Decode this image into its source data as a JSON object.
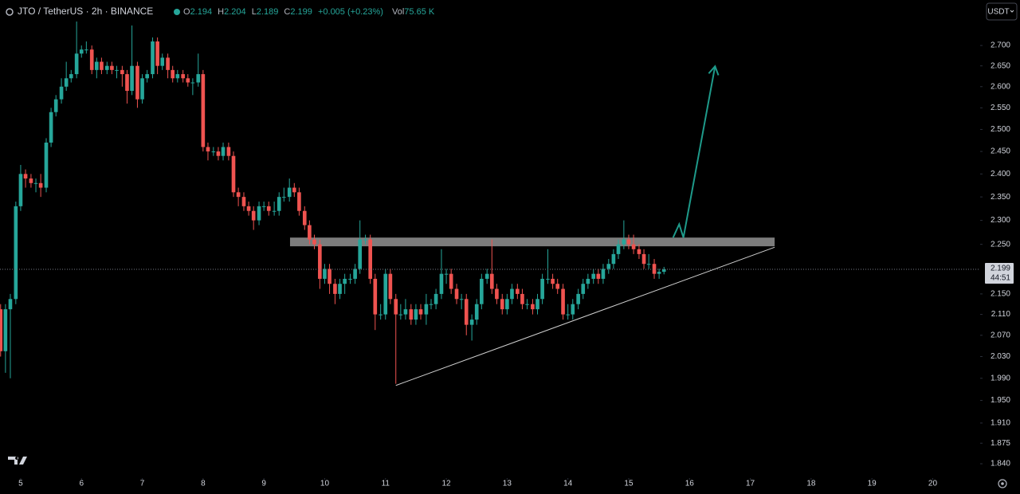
{
  "chart_data": {
    "type": "candlestick",
    "symbol": "JTO / TetherUS · 2h · BINANCE",
    "ohlc_labels": [
      "O",
      "H",
      "L",
      "C"
    ],
    "change": "+0.005 (+0.23%)",
    "volume_label": "Vol",
    "volume": "75.65 K",
    "currency": "USDT",
    "countdown": "44:51",
    "up_color": "#26a69a",
    "down_color": "#ef5350",
    "log_scale": true,
    "grid": false,
    "xlim": [
      4.66,
      20.78
    ],
    "xticks": [
      5,
      6,
      7,
      8,
      9,
      10,
      11,
      12,
      13,
      14,
      15,
      16,
      17,
      18,
      19,
      20
    ],
    "ylim": [
      1.816,
      2.815
    ],
    "yticks": [
      {
        "value": 2.7,
        "label": "2.700"
      },
      {
        "value": 2.65,
        "label": "2.650"
      },
      {
        "value": 2.6,
        "label": "2.600"
      },
      {
        "value": 2.55,
        "label": "2.550"
      },
      {
        "value": 2.5,
        "label": "2.500"
      },
      {
        "value": 2.45,
        "label": "2.450"
      },
      {
        "value": 2.4,
        "label": "2.400"
      },
      {
        "value": 2.35,
        "label": "2.350"
      },
      {
        "value": 2.3,
        "label": "2.300"
      },
      {
        "value": 2.25,
        "label": "2.250"
      },
      {
        "value": 2.15,
        "label": "2.150"
      },
      {
        "value": 2.11,
        "label": "2.110"
      },
      {
        "value": 2.07,
        "label": "2.070"
      },
      {
        "value": 2.03,
        "label": "2.030"
      },
      {
        "value": 1.99,
        "label": "1.990"
      },
      {
        "value": 1.95,
        "label": "1.950"
      },
      {
        "value": 1.91,
        "label": "1.910"
      },
      1.875,
      {
        "value": 1.84,
        "label": "1.840"
      }
    ],
    "x": [
      4.67,
      4.75,
      4.83,
      4.92,
      5,
      5.08,
      5.17,
      5.25,
      5.33,
      5.42,
      5.5,
      5.58,
      5.67,
      5.75,
      5.83,
      5.92,
      6,
      6.08,
      6.17,
      6.25,
      6.33,
      6.42,
      6.5,
      6.58,
      6.67,
      6.75,
      6.83,
      6.92,
      7,
      7.08,
      7.17,
      7.25,
      7.33,
      7.42,
      7.5,
      7.58,
      7.67,
      7.75,
      7.83,
      7.92,
      8,
      8.08,
      8.17,
      8.25,
      8.33,
      8.42,
      8.5,
      8.58,
      8.67,
      8.75,
      8.83,
      8.92,
      9,
      9.08,
      9.17,
      9.25,
      9.33,
      9.42,
      9.5,
      9.58,
      9.67,
      9.75,
      9.83,
      9.92,
      10,
      10.08,
      10.17,
      10.25,
      10.33,
      10.42,
      10.5,
      10.58,
      10.67,
      10.75,
      10.83,
      10.92,
      11,
      11.08,
      11.17,
      11.25,
      11.33,
      11.42,
      11.5,
      11.58,
      11.67,
      11.75,
      11.83,
      11.92,
      12,
      12.08,
      12.17,
      12.25,
      12.33,
      12.42,
      12.5,
      12.58,
      12.67,
      12.75,
      12.83,
      12.92,
      13,
      13.08,
      13.17,
      13.25,
      13.33,
      13.42,
      13.5,
      13.58,
      13.67,
      13.75,
      13.83,
      13.92,
      14,
      14.08,
      14.17,
      14.25,
      14.33,
      14.42,
      14.5,
      14.58,
      14.67,
      14.75,
      14.83,
      14.92,
      15,
      15.08,
      15.17,
      15.25,
      15.33,
      15.42,
      15.5,
      15.58
    ],
    "open": [
      2.12,
      2.04,
      2.12,
      2.14,
      2.33,
      2.4,
      2.39,
      2.38,
      2.38,
      2.37,
      2.47,
      2.54,
      2.57,
      2.6,
      2.62,
      2.63,
      2.68,
      2.69,
      2.69,
      2.64,
      2.66,
      2.64,
      2.65,
      2.64,
      2.64,
      2.63,
      2.59,
      2.65,
      2.57,
      2.62,
      2.63,
      2.71,
      2.65,
      2.67,
      2.64,
      2.62,
      2.63,
      2.62,
      2.61,
      2.61,
      2.63,
      2.46,
      2.45,
      2.45,
      2.44,
      2.46,
      2.44,
      2.36,
      2.35,
      2.33,
      2.32,
      2.3,
      2.33,
      2.33,
      2.32,
      2.32,
      2.35,
      2.35,
      2.37,
      2.36,
      2.32,
      2.29,
      2.26,
      2.25,
      2.18,
      2.2,
      2.17,
      2.15,
      2.17,
      2.18,
      2.18,
      2.2,
      2.26,
      2.26,
      2.18,
      2.11,
      2.11,
      2.19,
      2.14,
      2.11,
      2.11,
      2.12,
      2.1,
      2.12,
      2.11,
      2.13,
      2.13,
      2.15,
      2.19,
      2.19,
      2.16,
      2.14,
      2.14,
      2.09,
      2.1,
      2.13,
      2.18,
      2.19,
      2.16,
      2.14,
      2.12,
      2.14,
      2.16,
      2.15,
      2.13,
      2.13,
      2.12,
      2.14,
      2.18,
      2.18,
      2.17,
      2.16,
      2.11,
      2.11,
      2.13,
      2.15,
      2.17,
      2.18,
      2.19,
      2.18,
      2.2,
      2.21,
      2.23,
      2.25,
      2.26,
      2.25,
      2.24,
      2.23,
      2.21,
      2.21,
      2.19,
      2.194
    ],
    "high": [
      2.13,
      2.13,
      2.15,
      2.34,
      2.42,
      2.41,
      2.4,
      2.39,
      2.4,
      2.48,
      2.55,
      2.58,
      2.62,
      2.66,
      2.64,
      2.76,
      2.7,
      2.71,
      2.7,
      2.67,
      2.67,
      2.66,
      2.66,
      2.65,
      2.65,
      2.64,
      2.75,
      2.66,
      2.63,
      2.64,
      2.72,
      2.72,
      2.68,
      2.68,
      2.65,
      2.64,
      2.64,
      2.63,
      2.62,
      2.68,
      2.64,
      2.47,
      2.46,
      2.46,
      2.47,
      2.47,
      2.45,
      2.37,
      2.36,
      2.34,
      2.33,
      2.34,
      2.34,
      2.34,
      2.34,
      2.36,
      2.37,
      2.39,
      2.38,
      2.37,
      2.33,
      2.3,
      2.27,
      2.26,
      2.21,
      2.21,
      2.18,
      2.18,
      2.19,
      2.19,
      2.21,
      2.3,
      2.27,
      2.27,
      2.19,
      2.13,
      2.2,
      2.2,
      2.15,
      2.13,
      2.14,
      2.13,
      2.13,
      2.13,
      2.15,
      2.14,
      2.16,
      2.24,
      2.2,
      2.2,
      2.17,
      2.15,
      2.15,
      2.11,
      2.14,
      2.19,
      2.2,
      2.26,
      2.17,
      2.15,
      2.15,
      2.17,
      2.17,
      2.16,
      2.14,
      2.14,
      2.15,
      2.19,
      2.24,
      2.19,
      2.18,
      2.17,
      2.13,
      2.14,
      2.16,
      2.18,
      2.19,
      2.2,
      2.2,
      2.21,
      2.22,
      2.24,
      2.26,
      2.3,
      2.27,
      2.27,
      2.25,
      2.24,
      2.23,
      2.22,
      2.2,
      2.204
    ],
    "low": [
      2.03,
      2.0,
      1.99,
      2.13,
      2.32,
      2.37,
      2.37,
      2.36,
      2.35,
      2.36,
      2.46,
      2.53,
      2.56,
      2.59,
      2.61,
      2.62,
      2.67,
      2.68,
      2.63,
      2.62,
      2.63,
      2.63,
      2.63,
      2.62,
      2.6,
      2.56,
      2.58,
      2.55,
      2.56,
      2.61,
      2.62,
      2.63,
      2.64,
      2.62,
      2.61,
      2.61,
      2.61,
      2.6,
      2.58,
      2.6,
      2.45,
      2.43,
      2.44,
      2.43,
      2.43,
      2.43,
      2.35,
      2.33,
      2.32,
      2.31,
      2.28,
      2.29,
      2.32,
      2.31,
      2.31,
      2.31,
      2.34,
      2.34,
      2.35,
      2.31,
      2.28,
      2.25,
      2.24,
      2.16,
      2.17,
      2.15,
      2.13,
      2.14,
      2.15,
      2.17,
      2.17,
      2.19,
      2.25,
      2.17,
      2.08,
      2.1,
      2.1,
      2.13,
      1.98,
      2.1,
      2.1,
      2.09,
      2.09,
      2.1,
      2.09,
      2.12,
      2.12,
      2.14,
      2.17,
      2.15,
      2.13,
      2.12,
      2.07,
      2.06,
      2.09,
      2.12,
      2.17,
      2.15,
      2.13,
      2.11,
      2.11,
      2.13,
      2.14,
      2.12,
      2.12,
      2.11,
      2.11,
      2.13,
      2.17,
      2.16,
      2.15,
      2.1,
      2.1,
      2.1,
      2.12,
      2.14,
      2.16,
      2.17,
      2.17,
      2.17,
      2.19,
      2.2,
      2.22,
      2.24,
      2.24,
      2.23,
      2.22,
      2.2,
      2.2,
      2.18,
      2.18,
      2.189
    ],
    "close": [
      2.04,
      2.12,
      2.14,
      2.33,
      2.4,
      2.39,
      2.38,
      2.38,
      2.37,
      2.47,
      2.54,
      2.57,
      2.6,
      2.62,
      2.63,
      2.68,
      2.69,
      2.69,
      2.64,
      2.66,
      2.64,
      2.65,
      2.64,
      2.64,
      2.63,
      2.59,
      2.65,
      2.57,
      2.62,
      2.63,
      2.71,
      2.65,
      2.67,
      2.64,
      2.62,
      2.63,
      2.62,
      2.61,
      2.61,
      2.63,
      2.46,
      2.45,
      2.45,
      2.44,
      2.46,
      2.44,
      2.36,
      2.35,
      2.33,
      2.32,
      2.3,
      2.33,
      2.33,
      2.32,
      2.32,
      2.35,
      2.35,
      2.37,
      2.36,
      2.32,
      2.29,
      2.26,
      2.25,
      2.18,
      2.2,
      2.17,
      2.15,
      2.17,
      2.18,
      2.18,
      2.2,
      2.26,
      2.26,
      2.18,
      2.11,
      2.11,
      2.19,
      2.14,
      2.11,
      2.11,
      2.12,
      2.1,
      2.12,
      2.11,
      2.13,
      2.13,
      2.15,
      2.19,
      2.19,
      2.16,
      2.14,
      2.14,
      2.09,
      2.1,
      2.13,
      2.18,
      2.19,
      2.16,
      2.14,
      2.12,
      2.14,
      2.16,
      2.15,
      2.13,
      2.13,
      2.12,
      2.14,
      2.18,
      2.18,
      2.17,
      2.16,
      2.11,
      2.11,
      2.13,
      2.15,
      2.17,
      2.18,
      2.19,
      2.18,
      2.2,
      2.21,
      2.23,
      2.25,
      2.26,
      2.25,
      2.24,
      2.23,
      2.21,
      2.21,
      2.19,
      2.194,
      2.199
    ],
    "resistance_zone": {
      "x": [
        9.43,
        17.4
      ],
      "y": [
        2.246,
        2.264
      ],
      "color": "#8a8a8a"
    },
    "support_line": {
      "x": [
        11.17,
        17.4
      ],
      "y": [
        1.977,
        2.244
      ],
      "color": "#d0d0d0"
    },
    "arrow": {
      "x": [
        15.73,
        15.83,
        15.9,
        16.42
      ],
      "y": [
        2.264,
        2.292,
        2.264,
        2.649
      ],
      "color": "#1e9a8a"
    }
  }
}
